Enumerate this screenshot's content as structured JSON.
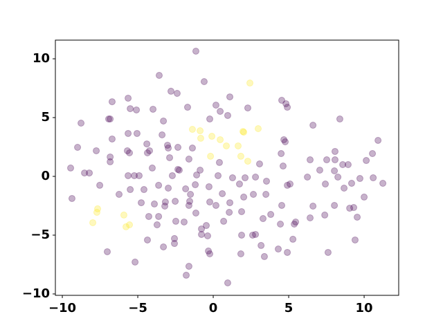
{
  "chart_data": {
    "type": "scatter",
    "xlim": [
      -10.46,
      12.29
    ],
    "ylim": [
      -10.12,
      11.59
    ],
    "xticks": [
      {
        "value": -10,
        "label": "−10"
      },
      {
        "value": -5,
        "label": "−5"
      },
      0,
      5,
      10
    ],
    "yticks": [
      {
        "value": -10,
        "label": "−10"
      },
      {
        "value": -5,
        "label": "−5"
      },
      0,
      5,
      10
    ],
    "alpha": 0.3,
    "series": [
      {
        "color": "#440154",
        "x": [
          -1.15,
          -3.58,
          -0.6,
          -2.8,
          -2.39,
          1.1,
          -6.7,
          -5.64,
          -5.5,
          -5.09,
          -3.99,
          -1.7,
          0.18,
          0.46,
          0.96,
          2.29,
          4.54,
          4.82,
          4.91,
          8.39,
          6.61,
          -8.76,
          -6.93,
          -6.83,
          -3.3,
          -0.23,
          -5.64,
          -5.05,
          -3.39,
          -6.7,
          4.68,
          4.77,
          10.92,
          -8.99,
          -7.75,
          -4.4,
          -3.03,
          -2.98,
          -2.34,
          -5.69,
          -5.55,
          -4.36,
          -4.22,
          -1.38,
          4.5,
          8.07,
          10.55,
          -6.83,
          -6.83,
          -2.89,
          -1.61,
          0.41,
          3.07,
          6.42,
          7.52,
          8.07,
          10.14,
          8.58,
          8.94,
          -9.45,
          -4.04,
          -2.34,
          -2.25,
          -0.87,
          4.63,
          7.06,
          8.03,
          -8.53,
          -8.21,
          -5.64,
          -5.23,
          -4.91,
          -2.71,
          -1.1,
          0.32,
          1.28,
          2.11,
          2.8,
          6.24,
          8.26,
          9.72,
          10.6,
          -7.52,
          -3.62,
          -2.98,
          -1.83,
          -1.19,
          -0.28,
          1.74,
          3.53,
          4.91,
          5.09,
          7.43,
          9.17,
          11.24,
          8.67,
          -5.5,
          -4.59,
          -6.24,
          -9.36,
          -1.51,
          0.6,
          2.02,
          2.66,
          3.49,
          10.0,
          -2.52,
          -1.56,
          -4.77,
          -3.9,
          -3.17,
          -0.23,
          0.18,
          1.1,
          4.54,
          6.61,
          8.03,
          9.04,
          9.31,
          -1.61,
          -3.21,
          1.88,
          1.06,
          -1.15,
          3.81,
          -4.27,
          -3.62,
          7.39,
          3.3,
          9.54,
          6.42,
          0.69,
          -2.48,
          -1.93,
          -3.72,
          -0.46,
          4.45,
          5.46,
          5.37,
          -0.78,
          -0.78,
          -0.37,
          1.88,
          2.61,
          2.8,
          -2.57,
          5.28,
          9.4,
          -4.36,
          -2.57,
          -3.3,
          3.17,
          4.31,
          -0.32,
          -0.23,
          -7.02,
          1.83,
          4.91,
          7.61,
          3.39,
          -5.18,
          -1.61,
          -1.79,
          0.96
        ],
        "values": [
          10.65,
          8.59,
          8.06,
          7.24,
          7.06,
          6.76,
          6.35,
          6.65,
          5.76,
          5.65,
          5.71,
          5.88,
          6.06,
          5.53,
          5.18,
          5.82,
          6.47,
          6.18,
          5.88,
          4.88,
          4.35,
          4.53,
          4.88,
          4.88,
          4.71,
          4.88,
          3.65,
          3.65,
          3.53,
          3.18,
          3.12,
          2.94,
          3.06,
          2.47,
          2.18,
          2.76,
          2.65,
          2.41,
          2.47,
          2.18,
          2.0,
          2.0,
          2.18,
          2.41,
          1.94,
          2.12,
          1.94,
          1.65,
          1.24,
          1.59,
          1.47,
          1.18,
          1.06,
          1.41,
          1.41,
          1.41,
          1.35,
          1.0,
          1.0,
          0.71,
          0.71,
          0.59,
          0.53,
          0.53,
          0.88,
          0.53,
          0.47,
          0.29,
          0.29,
          0.06,
          0.06,
          0.06,
          0.06,
          0.12,
          0.06,
          -0.12,
          -0.12,
          -0.06,
          -0.06,
          -0.06,
          -0.18,
          -0.12,
          -0.76,
          -0.76,
          -1.0,
          -1.06,
          -0.71,
          -0.88,
          -0.65,
          -0.41,
          -0.76,
          -0.65,
          -0.65,
          -0.59,
          -0.59,
          -1.0,
          -1.12,
          -1.12,
          -1.53,
          -1.88,
          -1.53,
          -1.47,
          -1.76,
          -1.53,
          -1.53,
          -1.76,
          -2.12,
          -2.12,
          -2.24,
          -2.35,
          -2.18,
          -2.18,
          -2.47,
          -2.24,
          -2.47,
          -2.53,
          -2.47,
          -2.71,
          -2.65,
          -2.47,
          -2.53,
          -3.0,
          -3.06,
          -3.12,
          -3.24,
          -3.41,
          -3.41,
          -3.29,
          -3.59,
          -3.47,
          -3.53,
          -3.82,
          -3.82,
          -3.88,
          -4.12,
          -4.18,
          -4.06,
          -3.88,
          -4.06,
          -4.47,
          -4.94,
          -5.06,
          -5.0,
          -5.0,
          -4.94,
          -5.29,
          -5.35,
          -5.41,
          -5.41,
          -5.71,
          -6.0,
          -5.88,
          -6.18,
          -6.35,
          -6.59,
          -6.41,
          -6.59,
          -6.47,
          -6.47,
          -6.82,
          -7.29,
          -7.65,
          -8.41,
          -9.06
        ]
      },
      {
        "color": "#fde725",
        "x": [
          2.43,
          -1.38,
          -0.87,
          1.97,
          2.02,
          2.98,
          -0.83,
          -0.09,
          0.46,
          0.87,
          1.65,
          -0.18,
          1.83,
          2.29,
          -7.66,
          -7.71,
          -5.92,
          -7.98,
          -5.55,
          -5.78
        ],
        "values": [
          7.94,
          4.0,
          3.88,
          3.82,
          3.76,
          4.06,
          3.24,
          3.41,
          3.12,
          2.59,
          2.59,
          1.71,
          1.71,
          1.29,
          -2.76,
          -3.06,
          -3.29,
          -3.94,
          -4.12,
          -4.29
        ]
      }
    ]
  }
}
